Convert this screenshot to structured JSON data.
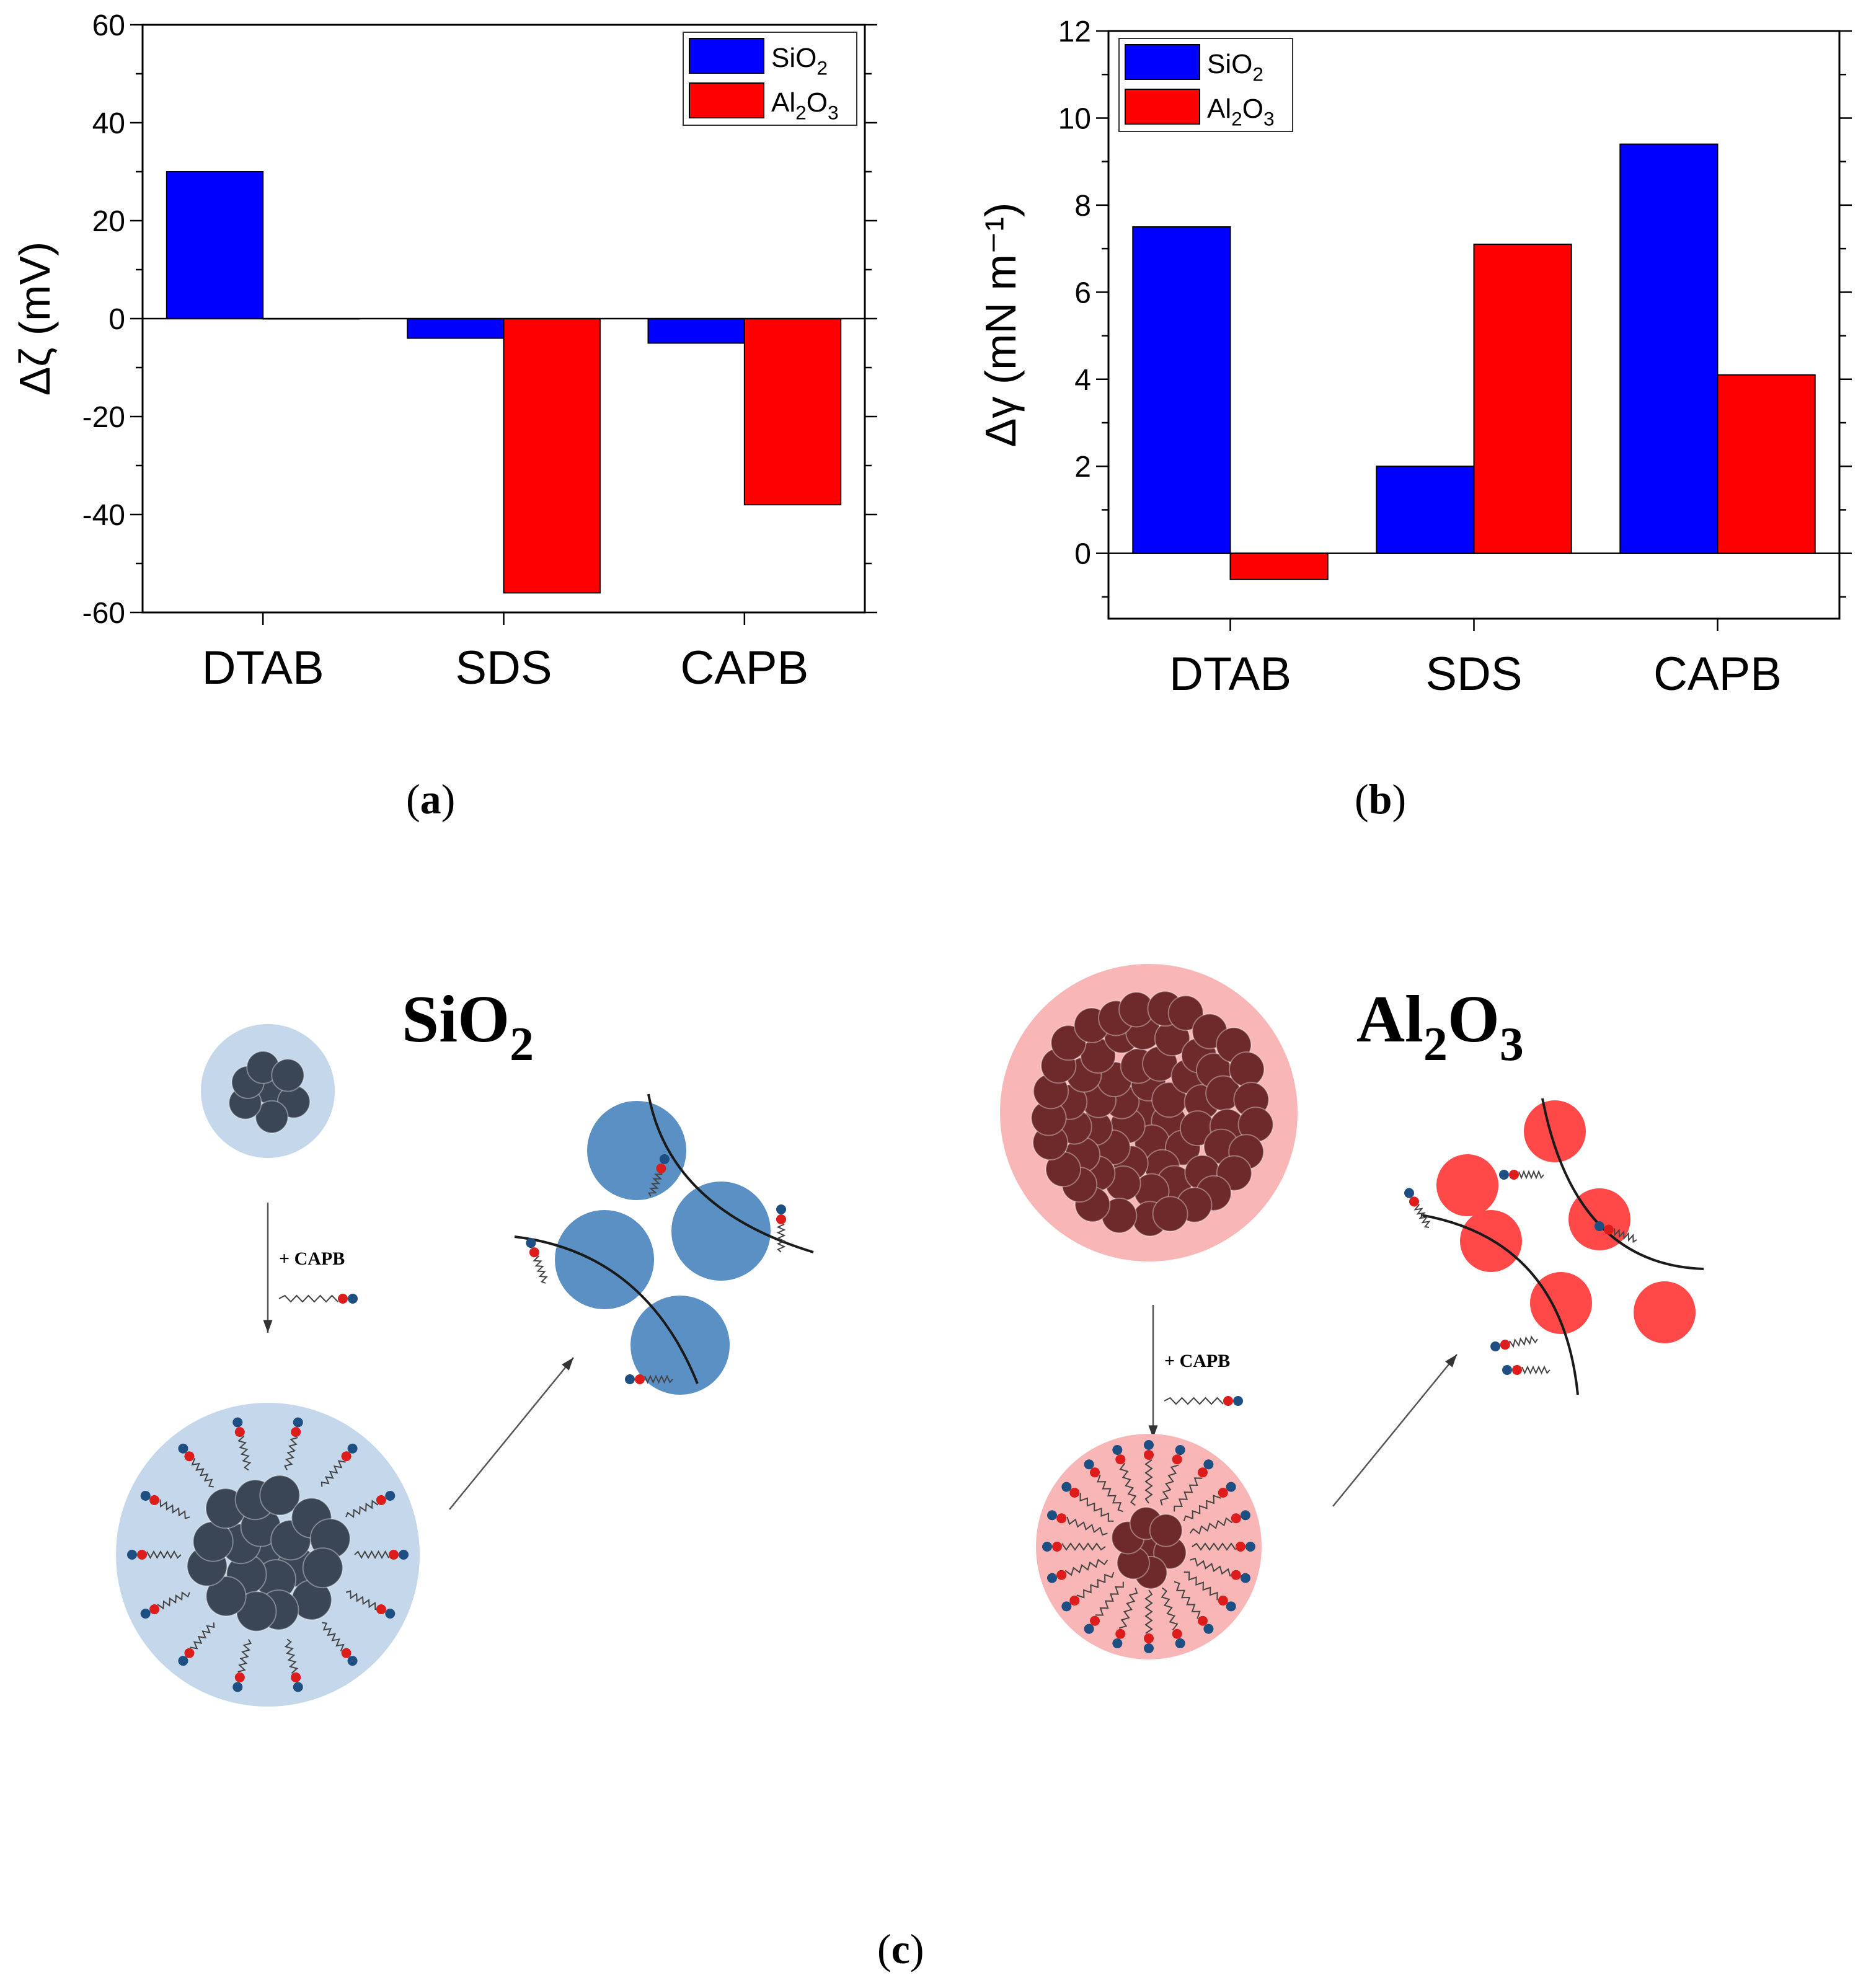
{
  "chart_data": [
    {
      "type": "bar",
      "panel": "a",
      "categories": [
        "DTAB",
        "SDS",
        "CAPB"
      ],
      "series": [
        {
          "name": "SiO2",
          "color": "#0000ff",
          "values": [
            30,
            -4,
            -5
          ]
        },
        {
          "name": "Al2O3",
          "color": "#ff0000",
          "values": [
            0,
            -56,
            -38
          ]
        }
      ],
      "ylabel": "Δζ (mV)",
      "ylim": [
        -60,
        60
      ],
      "yticks": [
        "-60",
        "-40",
        "-20",
        "0",
        "20",
        "40",
        "60"
      ],
      "ytick_values": [
        -60,
        -40,
        -20,
        0,
        20,
        40,
        60
      ],
      "legend": "top-right"
    },
    {
      "type": "bar",
      "panel": "b",
      "categories": [
        "DTAB",
        "SDS",
        "CAPB"
      ],
      "series": [
        {
          "name": "SiO2",
          "color": "#0000ff",
          "values": [
            7.5,
            2.0,
            9.4
          ]
        },
        {
          "name": "Al2O3",
          "color": "#ff0000",
          "values": [
            -0.6,
            7.1,
            4.1
          ]
        }
      ],
      "ylabel": "Δγ (mN m⁻¹)",
      "ylim": [
        -1.5,
        12
      ],
      "yticks": [
        "0",
        "2",
        "4",
        "6",
        "8",
        "10",
        "12"
      ],
      "ytick_values": [
        0,
        2,
        4,
        6,
        8,
        10,
        12
      ],
      "legend": "top-left"
    }
  ],
  "captions": {
    "a": "a",
    "b": "b",
    "c": "c"
  },
  "legend_labels": {
    "sio2": [
      "SiO",
      "2"
    ],
    "al2o3": [
      "Al",
      "2",
      "O",
      "3"
    ]
  },
  "schematic": {
    "sio2_title": [
      "SiO",
      "2"
    ],
    "al2o3_title": [
      "Al",
      "2",
      "O",
      "3"
    ],
    "reagent_label": "+ CAPB",
    "colors": {
      "sio2_shell": "#c5d7ea",
      "sio2_core": "#3a4656",
      "sio2_particle": "#5b90c4",
      "al2o3_shell": "#f8b6b6",
      "al2o3_core": "#6e2a2a",
      "al2o3_particle": "#ff4848",
      "head_red": "#dd1c1c",
      "head_blue": "#1e4f82"
    }
  }
}
